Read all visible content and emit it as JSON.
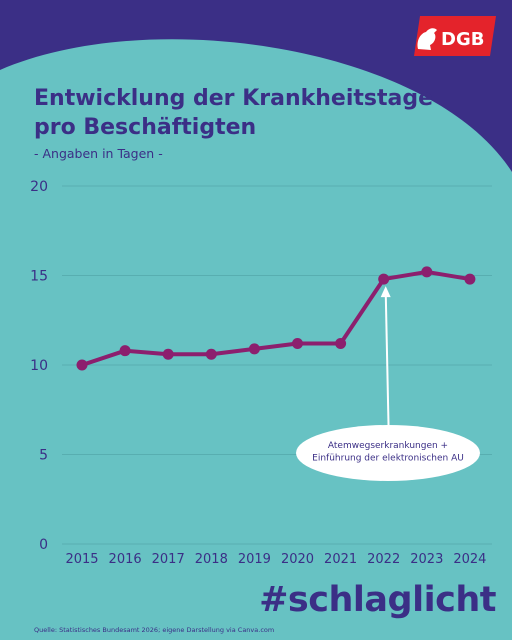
{
  "header": {
    "logo_text": "DGB",
    "title_line1": "Entwicklung der Krankheitstage",
    "title_line2": "pro Beschäftigten",
    "subtitle": "- Angaben in Tagen -"
  },
  "footer": {
    "hashtag": "#schlaglicht",
    "source": "Quelle: Statistisches Bundesamt 2026; eigene Darstellung via Canva.com"
  },
  "colors": {
    "background": "#67c2c3",
    "arc": "#3b2f86",
    "line": "#8c1f6e",
    "grid": "#58aeb0",
    "text": "#3b2f86",
    "logo_red": "#e4232b"
  },
  "chart_data": {
    "type": "line",
    "title": "Entwicklung der Krankheitstage pro Beschäftigten",
    "subtitle": "- Angaben in Tagen -",
    "xlabel": "",
    "ylabel": "",
    "categories": [
      "2015",
      "2016",
      "2017",
      "2018",
      "2019",
      "2020",
      "2021",
      "2022",
      "2023",
      "2024"
    ],
    "series": [
      {
        "values": [
          10.0,
          10.8,
          10.6,
          10.6,
          10.9,
          11.2,
          11.2,
          14.8,
          15.2,
          14.8
        ]
      }
    ],
    "yticks": [
      "0",
      "5",
      "10",
      "15",
      "20"
    ],
    "ylim": [
      0,
      20
    ],
    "grid": true,
    "annotation": {
      "lines": [
        "Atemwegserkrankungen +",
        "Einführung der elektronischen AU"
      ],
      "points_to": "2022"
    }
  }
}
